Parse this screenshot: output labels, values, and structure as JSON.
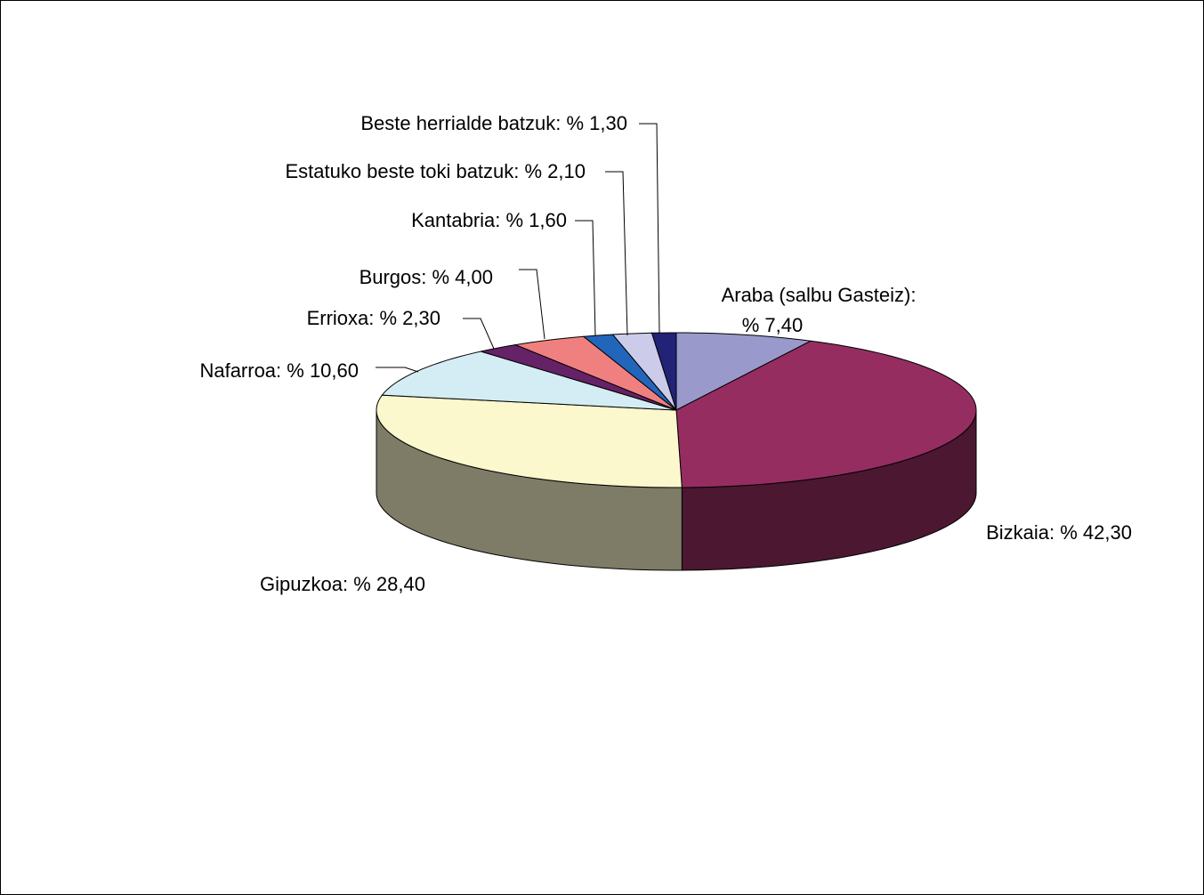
{
  "chart_data": {
    "type": "pie",
    "three_d": true,
    "start": "top, clockwise",
    "legend": "none",
    "slices": [
      {
        "label": "Araba (salbu Gasteiz):",
        "value_label": "% 7,40",
        "value": 7.4,
        "color": "#9999cc"
      },
      {
        "label": "Bizkaia:",
        "value_label": "% 42,30",
        "value": 42.3,
        "color": "#962d61"
      },
      {
        "label": "Gipuzkoa:",
        "value_label": "% 28,40",
        "value": 28.4,
        "color": "#fbf8cd"
      },
      {
        "label": "Nafarroa:",
        "value_label": "% 10,60",
        "value": 10.6,
        "color": "#d4edf4"
      },
      {
        "label": "Errioxa:",
        "value_label": "% 2,30",
        "value": 2.3,
        "color": "#662266"
      },
      {
        "label": "Burgos:",
        "value_label": "% 4,00",
        "value": 4.0,
        "color": "#f08080"
      },
      {
        "label": "Kantabria:",
        "value_label": "% 1,60",
        "value": 1.6,
        "color": "#2266bb"
      },
      {
        "label": "Estatuko beste toki batzuk:",
        "value_label": "% 2,10",
        "value": 2.1,
        "color": "#ccccea"
      },
      {
        "label": "Beste herrialde batzuk:",
        "value_label": "% 1,30",
        "value": 1.3,
        "color": "#222277"
      }
    ]
  }
}
